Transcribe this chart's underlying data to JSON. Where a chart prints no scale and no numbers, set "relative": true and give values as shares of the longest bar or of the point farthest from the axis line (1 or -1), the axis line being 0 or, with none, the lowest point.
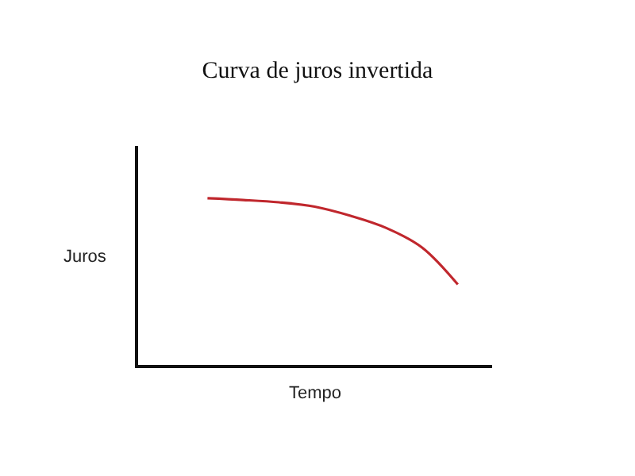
{
  "chart_data": {
    "type": "line",
    "title": "Curva de juros invertida",
    "xlabel": "Tempo",
    "ylabel": "Juros",
    "relative": true,
    "categories": [
      null,
      null,
      null,
      null,
      null,
      null,
      null,
      null
    ],
    "series": [
      {
        "color": "#c0272d",
        "values": [
          1,
          0.99,
          0.976,
          0.95,
          0.895,
          0.822,
          0.705,
          0.483
        ]
      }
    ]
  }
}
